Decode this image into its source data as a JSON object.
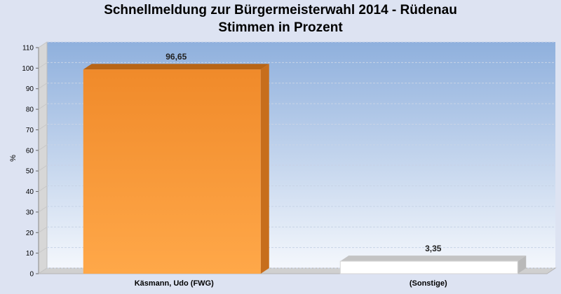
{
  "chart_data": {
    "type": "bar",
    "title": "Schnellmeldung zur Bürgermeisterwahl 2014 - Rüdenau",
    "subtitle": "Stimmen in Prozent",
    "ylabel": "%",
    "xlabel": "",
    "categories": [
      "Käsmann, Udo (FWG)",
      "(Sonstige)"
    ],
    "values": [
      96.65,
      3.35
    ],
    "data_labels": [
      "96,65",
      "3,35"
    ],
    "ylim": [
      0,
      110
    ],
    "yticks": [
      0,
      10,
      20,
      30,
      40,
      50,
      60,
      70,
      80,
      90,
      100,
      110
    ],
    "bar_colors": [
      "#f39a3c",
      "#ffffff"
    ],
    "plot_background": [
      "#8fb0dd",
      "#f4f7fc"
    ],
    "grid": true,
    "legend": "none"
  }
}
